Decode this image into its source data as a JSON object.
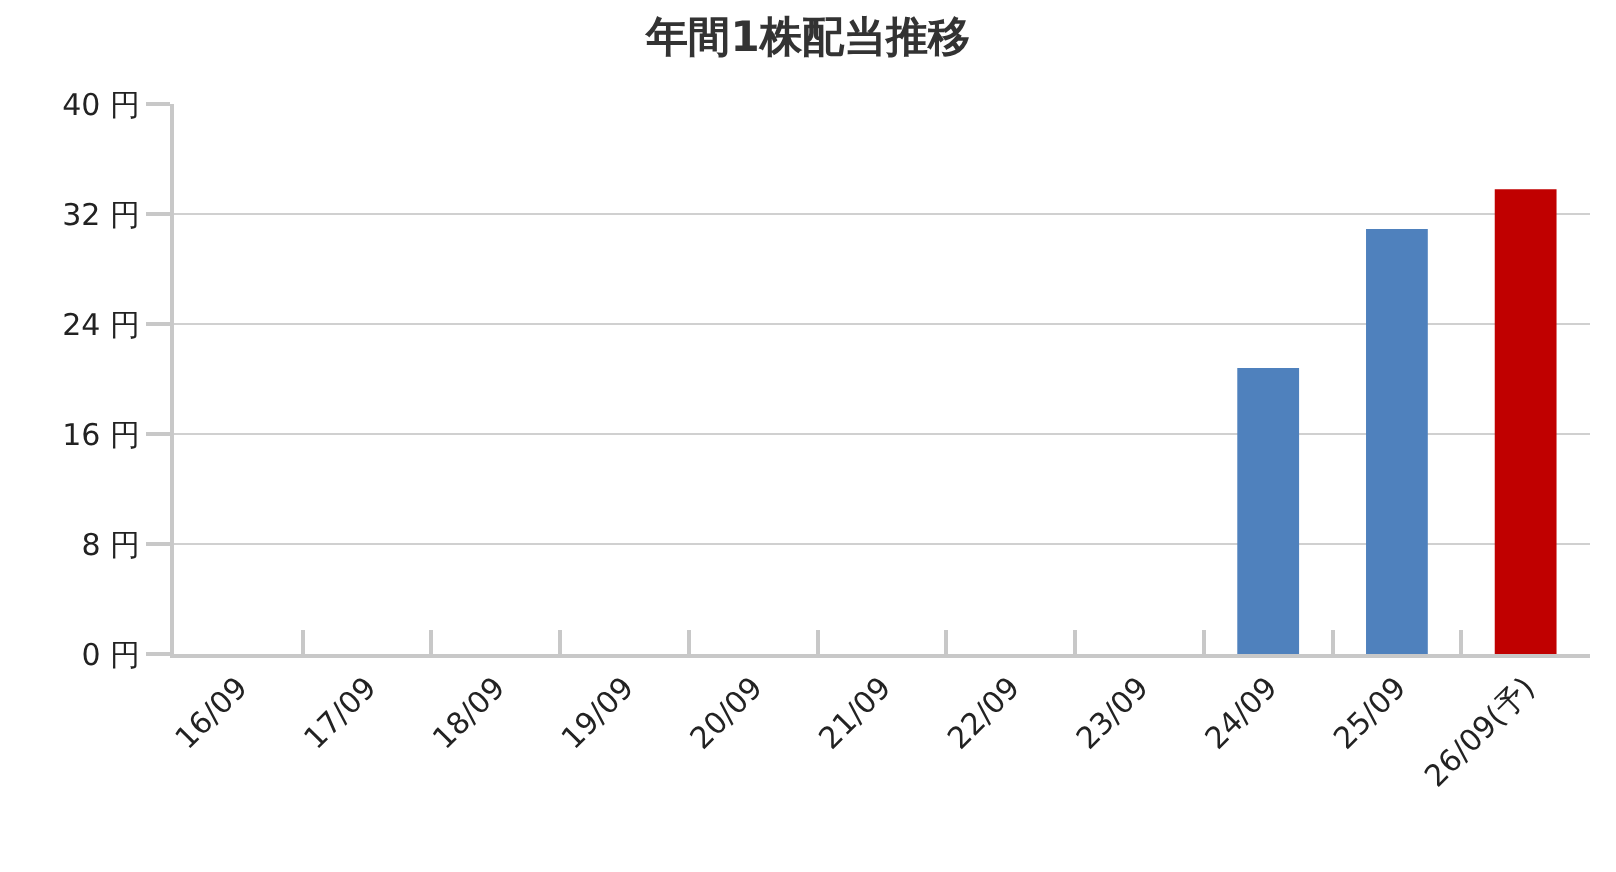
{
  "chart_data": {
    "type": "bar",
    "title": "年間1株配当推移",
    "categories": [
      "16/09",
      "17/09",
      "18/09",
      "19/09",
      "20/09",
      "21/09",
      "22/09",
      "23/09",
      "24/09",
      "25/09",
      "26/09(予)"
    ],
    "values": [
      null,
      null,
      null,
      null,
      null,
      null,
      null,
      null,
      20.8,
      30.9,
      33.8
    ],
    "colors": [
      "#4f81bd",
      "#4f81bd",
      "#4f81bd",
      "#4f81bd",
      "#4f81bd",
      "#4f81bd",
      "#4f81bd",
      "#4f81bd",
      "#4f81bd",
      "#4f81bd",
      "#c00000"
    ],
    "ylim": [
      0,
      40
    ],
    "yticks": [
      {
        "value": 0,
        "label": "0 円"
      },
      {
        "value": 8,
        "label": "8 円"
      },
      {
        "value": 16,
        "label": "16 円"
      },
      {
        "value": 24,
        "label": "24 円"
      },
      {
        "value": 32,
        "label": "32 円"
      },
      {
        "value": 40,
        "label": "40 円"
      }
    ],
    "grid": "y"
  }
}
